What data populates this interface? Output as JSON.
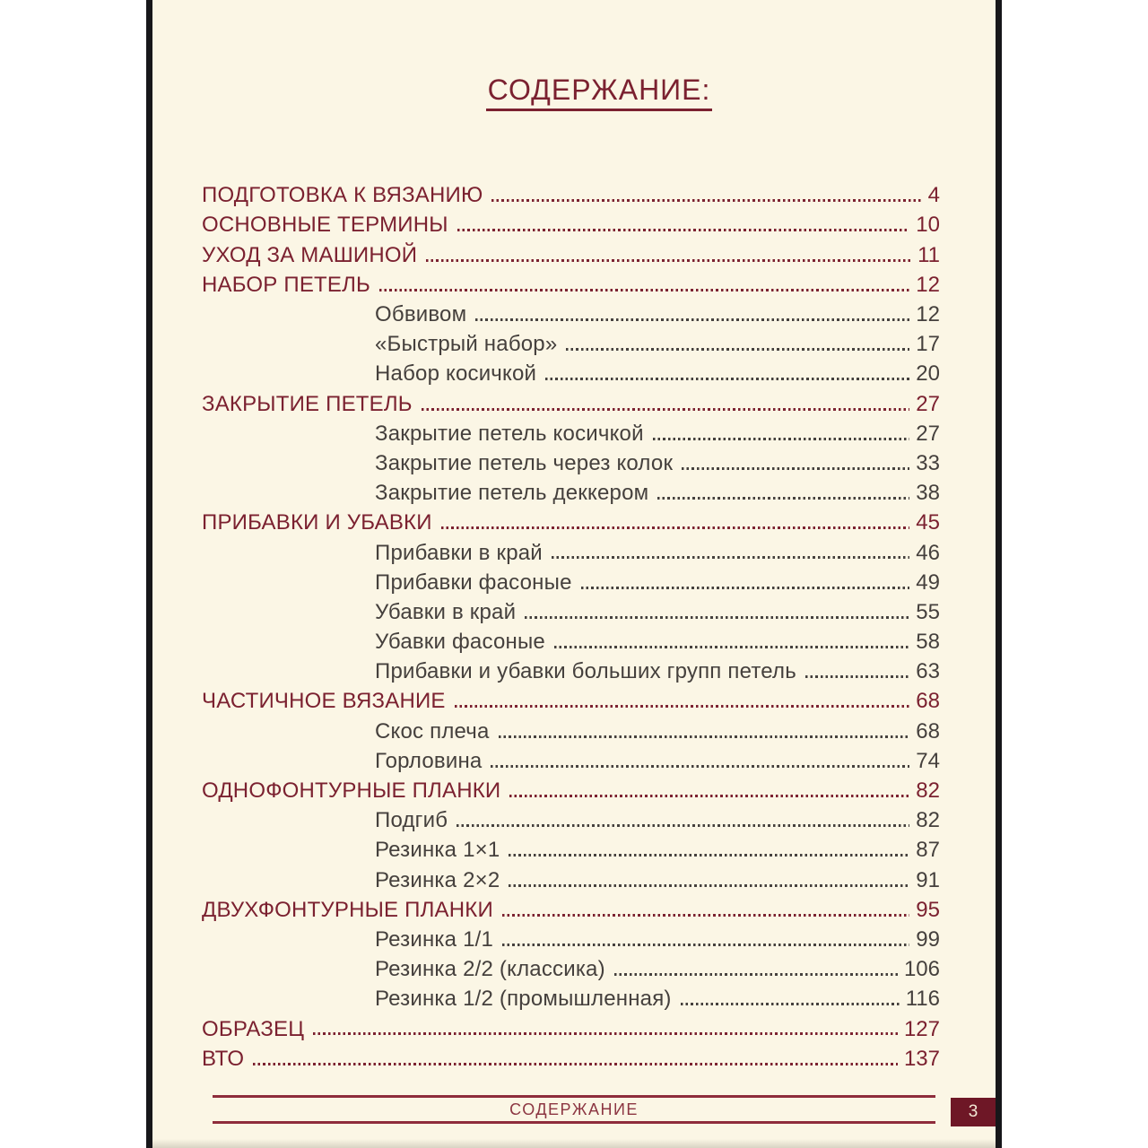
{
  "document": {
    "title": "СОДЕРЖАНИЕ:",
    "footer": {
      "section_label": "СОДЕРЖАНИЕ",
      "page_number": "3"
    }
  },
  "toc": {
    "entries": [
      {
        "level": 1,
        "label": "ПОДГОТОВКА К ВЯЗАНИЮ",
        "page": "4"
      },
      {
        "level": 1,
        "label": "ОСНОВНЫЕ ТЕРМИНЫ",
        "page": "10"
      },
      {
        "level": 1,
        "label": "УХОД ЗА МАШИНОЙ",
        "page": "11"
      },
      {
        "level": 1,
        "label": "НАБОР ПЕТЕЛЬ",
        "page": "12"
      },
      {
        "level": 2,
        "label": "Обвивом",
        "page": "12"
      },
      {
        "level": 2,
        "label": "«Быстрый набор»",
        "page": "17"
      },
      {
        "level": 2,
        "label": "Набор косичкой",
        "page": "20"
      },
      {
        "level": 1,
        "label": "ЗАКРЫТИЕ ПЕТЕЛЬ",
        "page": "27"
      },
      {
        "level": 2,
        "label": "Закрытие петель косичкой",
        "page": "27"
      },
      {
        "level": 2,
        "label": "Закрытие петель через колок",
        "page": "33"
      },
      {
        "level": 2,
        "label": "Закрытие петель деккером",
        "page": "38"
      },
      {
        "level": 1,
        "label": "ПРИБАВКИ И УБАВКИ",
        "page": "45"
      },
      {
        "level": 2,
        "label": "Прибавки в край",
        "page": "46"
      },
      {
        "level": 2,
        "label": "Прибавки фасоные",
        "page": "49"
      },
      {
        "level": 2,
        "label": "Убавки в край",
        "page": "55"
      },
      {
        "level": 2,
        "label": "Убавки фасоные",
        "page": "58"
      },
      {
        "level": 2,
        "label": "Прибавки и убавки больших групп петель",
        "page": "63"
      },
      {
        "level": 1,
        "label": "ЧАСТИЧНОЕ ВЯЗАНИЕ",
        "page": "68"
      },
      {
        "level": 2,
        "label": "Скос плеча",
        "page": "68"
      },
      {
        "level": 2,
        "label": "Горловина",
        "page": "74"
      },
      {
        "level": 1,
        "label": "ОДНОФОНТУРНЫЕ ПЛАНКИ",
        "page": "82"
      },
      {
        "level": 2,
        "label": "Подгиб",
        "page": "82"
      },
      {
        "level": 2,
        "label": "Резинка 1×1",
        "page": "87"
      },
      {
        "level": 2,
        "label": "Резинка 2×2",
        "page": "91"
      },
      {
        "level": 1,
        "label": "ДВУХФОНТУРНЫЕ ПЛАНКИ",
        "page": "95"
      },
      {
        "level": 2,
        "label": "Резинка 1/1",
        "page": "99"
      },
      {
        "level": 2,
        "label": "Резинка 2/2 (классика)",
        "page": "106"
      },
      {
        "level": 2,
        "label": "Резинка 1/2 (промышленная)",
        "page": "116"
      },
      {
        "level": 1,
        "label": "ОБРАЗЕЦ",
        "page": "127"
      },
      {
        "level": 1,
        "label": "ВТО",
        "page": "137"
      }
    ]
  },
  "colors": {
    "page_background": "#fbf6e5",
    "heading_maroon": "#7b2130",
    "subentry_gray": "#45403d",
    "footer_rule": "#8e2c3b",
    "page_badge_background": "#6e1726",
    "page_badge_text": "#f2e8d5",
    "page_edge_black": "#17171a"
  }
}
